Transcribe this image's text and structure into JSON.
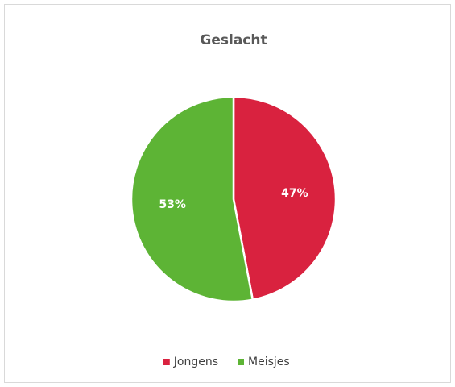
{
  "chart_data": {
    "type": "pie",
    "title": "Geslacht",
    "categories": [
      "Jongens",
      "Meisjes"
    ],
    "values": [
      47,
      53
    ],
    "value_labels": [
      "47%",
      "53%"
    ],
    "colors": [
      "#d9223f",
      "#5db435"
    ],
    "legend": "bottom"
  }
}
